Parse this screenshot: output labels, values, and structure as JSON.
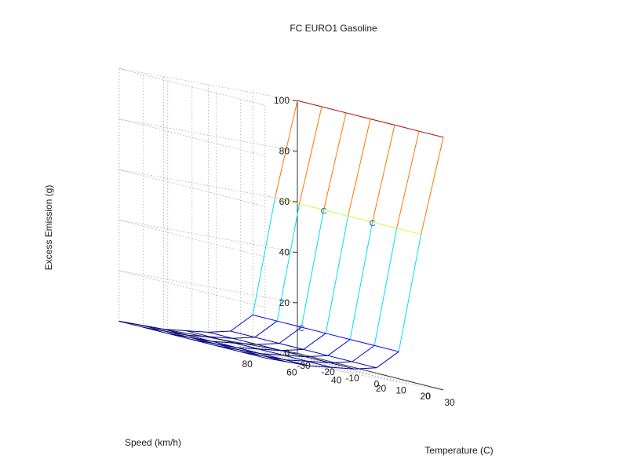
{
  "chart_data": {
    "type": "surface",
    "title": "FC EURO1 Gasoline",
    "xlabel": "Temperature (C)",
    "ylabel": "Speed (km/h)",
    "zlabel": "Excess Emission (g)",
    "xlim": [
      -30,
      30
    ],
    "ylim": [
      0,
      80
    ],
    "zlim": [
      0,
      100
    ],
    "x_ticks": [
      "-30",
      "-20",
      "-10",
      "0",
      "10",
      "20",
      "30"
    ],
    "y_ticks": [
      "0",
      "20",
      "40",
      "60",
      "80"
    ],
    "z_ticks": [
      "0",
      "20",
      "40",
      "60",
      "80",
      "100"
    ],
    "grid": true,
    "colormap": "jet",
    "temperature": [
      -30,
      -20,
      -10,
      0,
      10,
      20,
      30
    ],
    "speed": [
      0,
      10,
      20,
      30,
      40,
      50,
      60,
      70,
      80
    ],
    "emission_by_speed": [
      {
        "speed": 0,
        "values": [
          100,
          100,
          100,
          100,
          100,
          100,
          100
        ]
      },
      {
        "speed": 10,
        "values": [
          60,
          60,
          60,
          60,
          60,
          60,
          60
        ]
      },
      {
        "speed": 20,
        "values": [
          12,
          12,
          12,
          12,
          12,
          12,
          12
        ]
      },
      {
        "speed": 30,
        "values": [
          4,
          4,
          4,
          4,
          4,
          4,
          4
        ]
      },
      {
        "speed": 40,
        "values": [
          2,
          2,
          2,
          2,
          2,
          2,
          2
        ]
      },
      {
        "speed": 50,
        "values": [
          1,
          1,
          1,
          1,
          1,
          1,
          1
        ]
      },
      {
        "speed": 60,
        "values": [
          0,
          0,
          0,
          0,
          0,
          0,
          0
        ]
      },
      {
        "speed": 70,
        "values": [
          0,
          0,
          0,
          0,
          0,
          0,
          0
        ]
      },
      {
        "speed": 80,
        "values": [
          0,
          0,
          0,
          0,
          0,
          0,
          0
        ]
      }
    ],
    "annotations": [
      "C",
      "C",
      "C"
    ]
  }
}
